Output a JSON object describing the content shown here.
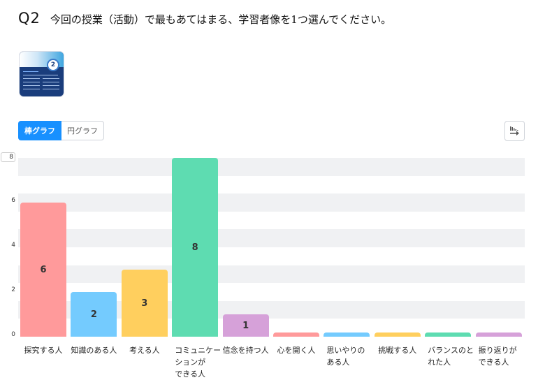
{
  "question": {
    "number": "Q2",
    "text": "今回の授業（活動）で最もあてはまる、学習者像を1つ選んでください。"
  },
  "thumbnail": {
    "badge": "2"
  },
  "toggle": {
    "bar_label": "棒グラフ",
    "pie_label": "円グラフ",
    "active": "bar"
  },
  "export_button": {
    "icon": "chart-export-icon"
  },
  "colors": {
    "accent": "#1890ff",
    "band": "#f0f1f3",
    "palette": [
      "#ff9a9b",
      "#74cbfe",
      "#ffcf5e",
      "#5edcb1",
      "#d6a1d9"
    ]
  },
  "chart_data": {
    "type": "bar",
    "title": "今回の授業（活動）で最もあてはまる、学習者像を1つ選んでください。",
    "xlabel": "",
    "ylabel": "",
    "ylim": [
      0,
      8
    ],
    "yticks": [
      "0",
      "2",
      "4",
      "6",
      "8"
    ],
    "grid": "alternating horizontal bands",
    "legend": "none",
    "categories": [
      "探究する人",
      "知識のある人",
      "考える人",
      "コミュニケーションができる人",
      "信念を持つ人",
      "心を開く人",
      "思いやりのある人",
      "挑戦する人",
      "バランスのとれた人",
      "振り返りができる人"
    ],
    "category_display": [
      [
        "探究する人"
      ],
      [
        "知識のある人"
      ],
      [
        "考える人"
      ],
      [
        "コミュニケー",
        "ションが",
        "できる人"
      ],
      [
        "信念を持つ人"
      ],
      [
        "心を開く人"
      ],
      [
        "思いやりの",
        "ある人"
      ],
      [
        "挑戦する人"
      ],
      [
        "バランスのと",
        "れた人"
      ],
      [
        "振り返りが",
        "できる人"
      ]
    ],
    "values": [
      6,
      2,
      3,
      8,
      1,
      0,
      0,
      0,
      0,
      0
    ],
    "data_labels": [
      "6",
      "2",
      "3",
      "8",
      "1",
      "",
      "",
      "",
      "",
      ""
    ]
  }
}
